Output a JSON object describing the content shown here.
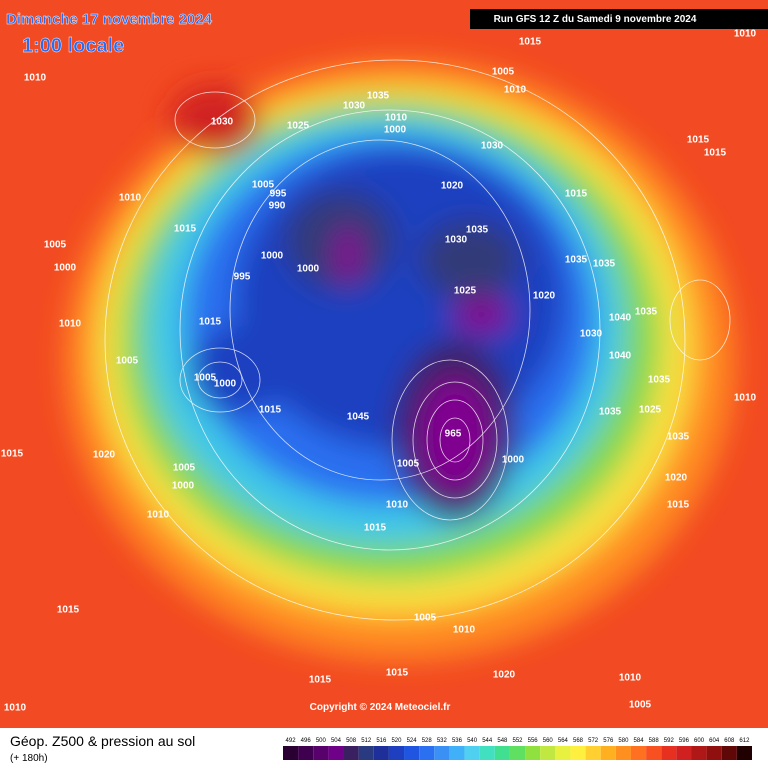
{
  "header": {
    "date": "Dimanche 17 novembre 2024",
    "time": "1:00 locale",
    "run": "Run GFS 12 Z du Samedi 9 novembre 2024"
  },
  "copyright": "Copyright © 2024 Meteociel.fr",
  "legend": {
    "title": "Géop. Z500 & pression au sol",
    "lead": "(+ 180h)"
  },
  "colorbar": {
    "values": [
      492,
      496,
      500,
      504,
      508,
      512,
      516,
      520,
      524,
      528,
      532,
      536,
      540,
      544,
      548,
      552,
      556,
      560,
      564,
      568,
      572,
      576,
      580,
      584,
      588,
      592,
      596,
      600,
      604,
      608,
      612
    ],
    "colors": [
      "#2a0033",
      "#3f004f",
      "#58006b",
      "#6f0088",
      "#3a2060",
      "#2a3a80",
      "#1e2f9a",
      "#1d3fc0",
      "#1f55e0",
      "#2a70f0",
      "#3a90f5",
      "#40b0f8",
      "#50d0f0",
      "#40e0c0",
      "#40e090",
      "#60e060",
      "#90e040",
      "#c0e840",
      "#e8f040",
      "#fff040",
      "#ffd030",
      "#ffb020",
      "#ff9020",
      "#ff7020",
      "#f85020",
      "#e83020",
      "#d02020",
      "#b01818",
      "#901010",
      "#600808",
      "#200000"
    ]
  },
  "pressure_labels": [
    "1015",
    "1010",
    "1030",
    "1010",
    "1005",
    "1010",
    "1035",
    "1030",
    "1010",
    "1000",
    "1025",
    "1030",
    "1015",
    "1015",
    "1010",
    "1005",
    "995",
    "990",
    "1020",
    "1015",
    "1015",
    "1005",
    "1000",
    "1000",
    "1000",
    "995",
    "1035",
    "1030",
    "1035",
    "1035",
    "1025",
    "1020",
    "1015",
    "1010",
    "1030",
    "1035",
    "1040",
    "1005",
    "1005",
    "1000",
    "1040",
    "1035",
    "1010",
    "1015",
    "1045",
    "1035",
    "1025",
    "1020",
    "1015",
    "1005",
    "1000",
    "1005",
    "1035",
    "1020",
    "1015",
    "1010",
    "1010",
    "1015",
    "1000",
    "1015",
    "1005",
    "1010",
    "1015",
    "1020",
    "1015",
    "1010",
    "1005",
    "1010",
    "965"
  ]
}
